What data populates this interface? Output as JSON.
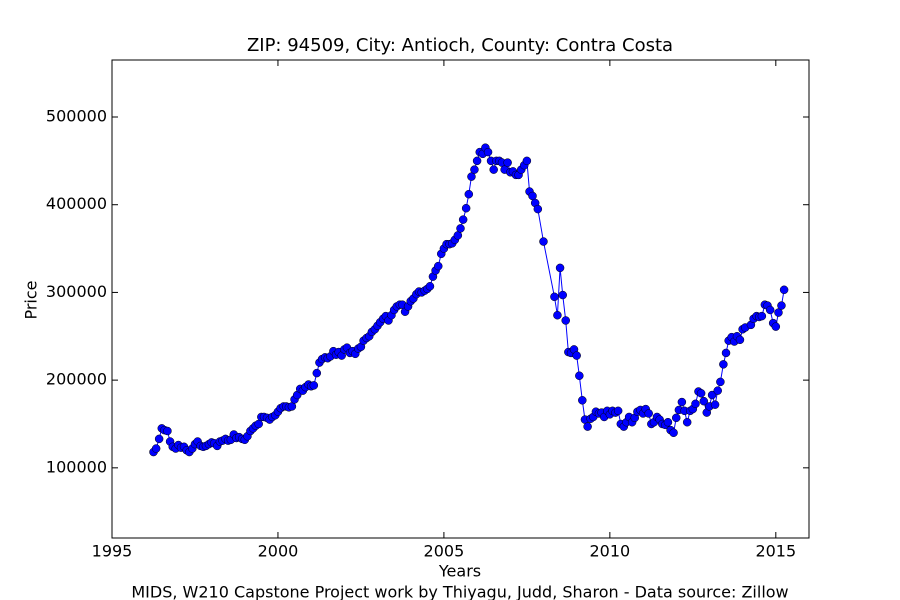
{
  "chart_data": {
    "type": "line",
    "title": "ZIP: 94509, City: Antioch, County: Contra Costa",
    "x_label": "Years",
    "y_label": "Price",
    "caption": "MIDS, W210 Capstone Project work by Thiyagu, Judd, Sharon  -  Data source: Zillow",
    "color": "#0000ff",
    "marker": "o",
    "grid": false,
    "xlim": [
      1995,
      2016
    ],
    "xticks": [
      1995,
      2000,
      2005,
      2010,
      2015
    ],
    "ylim": [
      20000,
      565000
    ],
    "yticks": [
      100000,
      200000,
      300000,
      400000,
      500000
    ],
    "x": [
      1996.25,
      1996.33,
      1996.42,
      1996.5,
      1996.58,
      1996.67,
      1996.75,
      1996.83,
      1996.92,
      1997.0,
      1997.08,
      1997.17,
      1997.25,
      1997.33,
      1997.42,
      1997.5,
      1997.58,
      1997.67,
      1997.75,
      1997.83,
      1997.92,
      1998.0,
      1998.08,
      1998.17,
      1998.25,
      1998.33,
      1998.42,
      1998.5,
      1998.58,
      1998.67,
      1998.75,
      1998.83,
      1998.92,
      1999.0,
      1999.08,
      1999.17,
      1999.25,
      1999.33,
      1999.42,
      1999.5,
      1999.58,
      1999.67,
      1999.75,
      1999.83,
      1999.92,
      2000.0,
      2000.08,
      2000.17,
      2000.25,
      2000.33,
      2000.42,
      2000.5,
      2000.58,
      2000.67,
      2000.75,
      2000.83,
      2000.92,
      2001.0,
      2001.08,
      2001.17,
      2001.25,
      2001.33,
      2001.42,
      2001.5,
      2001.58,
      2001.67,
      2001.75,
      2001.83,
      2001.92,
      2002.0,
      2002.08,
      2002.17,
      2002.25,
      2002.33,
      2002.42,
      2002.5,
      2002.58,
      2002.67,
      2002.75,
      2002.83,
      2002.92,
      2003.0,
      2003.08,
      2003.17,
      2003.25,
      2003.33,
      2003.42,
      2003.5,
      2003.58,
      2003.67,
      2003.75,
      2003.83,
      2003.92,
      2004.0,
      2004.08,
      2004.17,
      2004.25,
      2004.33,
      2004.42,
      2004.5,
      2004.58,
      2004.67,
      2004.75,
      2004.83,
      2004.92,
      2005.0,
      2005.08,
      2005.17,
      2005.25,
      2005.33,
      2005.42,
      2005.5,
      2005.58,
      2005.67,
      2005.75,
      2005.83,
      2005.92,
      2006.0,
      2006.08,
      2006.17,
      2006.25,
      2006.33,
      2006.42,
      2006.5,
      2006.58,
      2006.67,
      2006.75,
      2006.83,
      2006.92,
      2007.0,
      2007.08,
      2007.17,
      2007.25,
      2007.33,
      2007.42,
      2007.5,
      2007.58,
      2007.67,
      2007.75,
      2007.83,
      2008.0,
      2008.33,
      2008.42,
      2008.5,
      2008.58,
      2008.67,
      2008.75,
      2008.83,
      2008.92,
      2009.0,
      2009.08,
      2009.17,
      2009.25,
      2009.33,
      2009.42,
      2009.5,
      2009.58,
      2009.67,
      2009.75,
      2009.83,
      2009.92,
      2010.0,
      2010.08,
      2010.17,
      2010.25,
      2010.33,
      2010.42,
      2010.5,
      2010.58,
      2010.67,
      2010.75,
      2010.83,
      2010.92,
      2011.0,
      2011.08,
      2011.17,
      2011.25,
      2011.33,
      2011.42,
      2011.5,
      2011.58,
      2011.67,
      2011.75,
      2011.83,
      2011.92,
      2012.0,
      2012.08,
      2012.17,
      2012.25,
      2012.33,
      2012.42,
      2012.5,
      2012.58,
      2012.67,
      2012.75,
      2012.83,
      2012.92,
      2013.0,
      2013.08,
      2013.17,
      2013.25,
      2013.33,
      2013.42,
      2013.5,
      2013.58,
      2013.67,
      2013.75,
      2013.83,
      2013.92,
      2014.0,
      2014.08,
      2014.25,
      2014.33,
      2014.42,
      2014.5,
      2014.58,
      2014.67,
      2014.75,
      2014.83,
      2014.92,
      2015.0,
      2015.08,
      2015.17,
      2015.25
    ],
    "values": [
      118000,
      122000,
      133000,
      145000,
      143000,
      142000,
      130000,
      124000,
      122000,
      126000,
      123000,
      124000,
      120000,
      118000,
      122000,
      127000,
      130000,
      125000,
      124000,
      125000,
      127000,
      129000,
      128000,
      125000,
      130000,
      131000,
      133000,
      131000,
      132000,
      138000,
      134000,
      135000,
      133000,
      132000,
      136000,
      142000,
      145000,
      148000,
      150000,
      158000,
      158000,
      157000,
      155000,
      158000,
      160000,
      164000,
      168000,
      170000,
      170000,
      169000,
      170000,
      178000,
      183000,
      190000,
      188000,
      192000,
      195000,
      193000,
      194000,
      208000,
      220000,
      224000,
      226000,
      225000,
      227000,
      233000,
      229000,
      232000,
      228000,
      235000,
      237000,
      231000,
      233000,
      230000,
      236000,
      238000,
      245000,
      248000,
      250000,
      255000,
      258000,
      262000,
      266000,
      270000,
      273000,
      268000,
      274000,
      280000,
      284000,
      286000,
      286000,
      278000,
      284000,
      290000,
      293000,
      298000,
      301000,
      300000,
      302000,
      304000,
      307000,
      318000,
      325000,
      330000,
      344000,
      350000,
      355000,
      355000,
      356000,
      360000,
      365000,
      373000,
      383000,
      396000,
      412000,
      432000,
      440000,
      450000,
      460000,
      458000,
      465000,
      460000,
      450000,
      440000,
      450000,
      450000,
      448000,
      440000,
      448000,
      437000,
      438000,
      434000,
      434000,
      440000,
      445000,
      450000,
      415000,
      410000,
      402000,
      395000,
      358000,
      295000,
      274000,
      328000,
      297000,
      268000,
      232000,
      231000,
      235000,
      228000,
      205000,
      177000,
      155000,
      147000,
      156000,
      158000,
      164000,
      162000,
      163000,
      158000,
      165000,
      161000,
      165000,
      163000,
      165000,
      150000,
      147000,
      152000,
      158000,
      152000,
      157000,
      164000,
      166000,
      162000,
      167000,
      162000,
      150000,
      152000,
      158000,
      155000,
      150000,
      149000,
      152000,
      143000,
      140000,
      157000,
      166000,
      175000,
      165000,
      152000,
      165000,
      167000,
      173000,
      187000,
      185000,
      176000,
      163000,
      170000,
      183000,
      172000,
      188000,
      198000,
      218000,
      231000,
      245000,
      249000,
      244000,
      250000,
      246000,
      258000,
      260000,
      263000,
      270000,
      273000,
      272000,
      273000,
      286000,
      285000,
      280000,
      265000,
      261000,
      277000,
      285000,
      303000
    ]
  }
}
